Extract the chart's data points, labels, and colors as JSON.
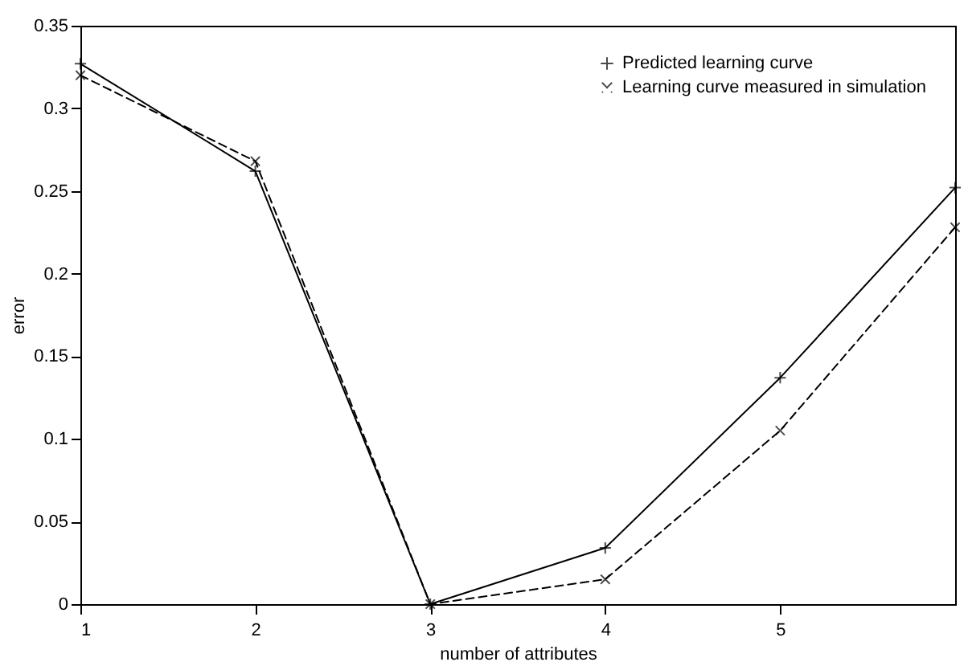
{
  "chart_data": {
    "type": "line",
    "xlabel": "number of attributes",
    "ylabel": "error",
    "x": [
      1,
      2,
      3,
      4,
      5,
      6
    ],
    "xlim": [
      1,
      6
    ],
    "xticks": [
      1,
      2,
      3,
      4,
      5
    ],
    "ylim": [
      0,
      0.35
    ],
    "yticks": [
      0,
      0.05,
      0.1,
      0.15,
      0.2,
      0.25,
      0.3,
      0.35
    ],
    "grid": false,
    "legend": "top right",
    "series": [
      {
        "name": "Predicted learning curve",
        "color": "#000000",
        "line_style": "solid",
        "marker": "cross",
        "values": [
          0.327,
          0.262,
          0.0,
          0.034,
          0.137,
          0.252
        ]
      },
      {
        "name": "Learning curve measured in simulation",
        "color": "#000000",
        "line_style": "dashed",
        "marker": "x",
        "values": [
          0.32,
          0.268,
          0.0,
          0.015,
          0.105,
          0.228
        ]
      }
    ]
  }
}
